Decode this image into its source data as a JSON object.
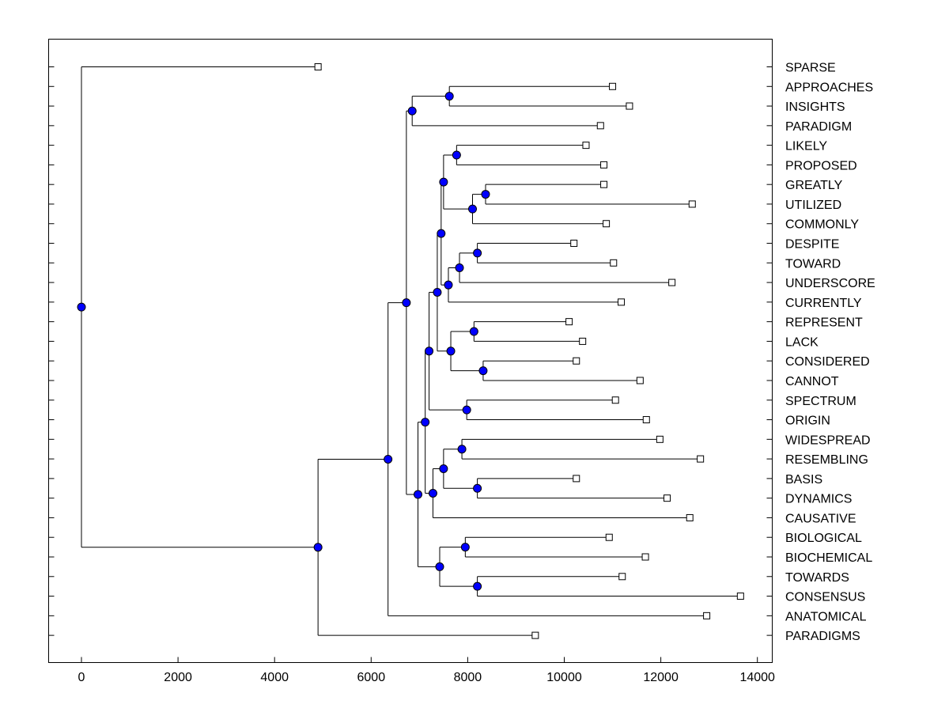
{
  "chart_data": {
    "type": "dendrogram",
    "title": "",
    "xlabel": "",
    "ylabel": "",
    "xlim": [
      -700,
      15000
    ],
    "xticks": [
      0,
      2000,
      4000,
      6000,
      8000,
      10000,
      12000,
      14000
    ],
    "xtick_labels": [
      "0",
      "2000",
      "4000",
      "6000",
      "8000",
      "10000",
      "12000",
      "14000"
    ],
    "colors": {
      "node_fill": "#0000ff",
      "line": "#000000",
      "leaf_fill": "#ffffff"
    },
    "leaves": [
      {
        "label": "SPARSE",
        "value": 4900
      },
      {
        "label": "APPROACHES",
        "value": 11000
      },
      {
        "label": "INSIGHTS",
        "value": 11350
      },
      {
        "label": "PARADIGM",
        "value": 10750
      },
      {
        "label": "LIKELY",
        "value": 10450
      },
      {
        "label": "PROPOSED",
        "value": 10820
      },
      {
        "label": "GREATLY",
        "value": 10820
      },
      {
        "label": "UTILIZED",
        "value": 12650
      },
      {
        "label": "COMMONLY",
        "value": 10870
      },
      {
        "label": "DESPITE",
        "value": 10200
      },
      {
        "label": "TOWARD",
        "value": 11020
      },
      {
        "label": "UNDERSCORE",
        "value": 12230
      },
      {
        "label": "CURRENTLY",
        "value": 11180
      },
      {
        "label": "REPRESENT",
        "value": 10100
      },
      {
        "label": "LACK",
        "value": 10380
      },
      {
        "label": "CONSIDERED",
        "value": 10250
      },
      {
        "label": "CANNOT",
        "value": 11570
      },
      {
        "label": "SPECTRUM",
        "value": 11060
      },
      {
        "label": "ORIGIN",
        "value": 11700
      },
      {
        "label": "WIDESPREAD",
        "value": 11980
      },
      {
        "label": "RESEMBLING",
        "value": 12820
      },
      {
        "label": "BASIS",
        "value": 10250
      },
      {
        "label": "DYNAMICS",
        "value": 12130
      },
      {
        "label": "CAUSATIVE",
        "value": 12600
      },
      {
        "label": "BIOLOGICAL",
        "value": 10930
      },
      {
        "label": "BIOCHEMICAL",
        "value": 11680
      },
      {
        "label": "TOWARDS",
        "value": 11200
      },
      {
        "label": "CONSENSUS",
        "value": 13650
      },
      {
        "label": "ANATOMICAL",
        "value": 12950
      },
      {
        "label": "PARADIGMS",
        "value": 9400
      }
    ],
    "merges": [
      {
        "id": "n1",
        "value": 7620,
        "children": [
          "APPROACHES",
          "INSIGHTS"
        ]
      },
      {
        "id": "n2",
        "value": 6850,
        "children": [
          "n1",
          "PARADIGM"
        ]
      },
      {
        "id": "n3",
        "value": 7770,
        "children": [
          "LIKELY",
          "PROPOSED"
        ]
      },
      {
        "id": "n4",
        "value": 8370,
        "children": [
          "GREATLY",
          "UTILIZED"
        ]
      },
      {
        "id": "n5",
        "value": 8100,
        "children": [
          "n4",
          "COMMONLY"
        ]
      },
      {
        "id": "n6",
        "value": 7500,
        "children": [
          "n3",
          "n5"
        ]
      },
      {
        "id": "n7",
        "value": 8200,
        "children": [
          "DESPITE",
          "TOWARD"
        ]
      },
      {
        "id": "n8",
        "value": 7830,
        "children": [
          "n7",
          "UNDERSCORE"
        ]
      },
      {
        "id": "n9",
        "value": 7600,
        "children": [
          "n8",
          "CURRENTLY"
        ]
      },
      {
        "id": "n10",
        "value": 7450,
        "children": [
          "n6",
          "n9"
        ]
      },
      {
        "id": "n11",
        "value": 8130,
        "children": [
          "REPRESENT",
          "LACK"
        ]
      },
      {
        "id": "n12",
        "value": 8320,
        "children": [
          "CONSIDERED",
          "CANNOT"
        ]
      },
      {
        "id": "n13",
        "value": 7650,
        "children": [
          "n11",
          "n12"
        ]
      },
      {
        "id": "n14",
        "value": 7370,
        "children": [
          "n10",
          "n13"
        ]
      },
      {
        "id": "n15",
        "value": 7980,
        "children": [
          "SPECTRUM",
          "ORIGIN"
        ]
      },
      {
        "id": "n16",
        "value": 7200,
        "children": [
          "n14",
          "n15"
        ]
      },
      {
        "id": "n17",
        "value": 7880,
        "children": [
          "WIDESPREAD",
          "RESEMBLING"
        ]
      },
      {
        "id": "n18",
        "value": 8200,
        "children": [
          "BASIS",
          "DYNAMICS"
        ]
      },
      {
        "id": "n19",
        "value": 7500,
        "children": [
          "n17",
          "n18"
        ]
      },
      {
        "id": "n20",
        "value": 7280,
        "children": [
          "n19",
          "CAUSATIVE"
        ]
      },
      {
        "id": "n21",
        "value": 7120,
        "children": [
          "n16",
          "n20"
        ]
      },
      {
        "id": "n22",
        "value": 7950,
        "children": [
          "BIOLOGICAL",
          "BIOCHEMICAL"
        ]
      },
      {
        "id": "n23",
        "value": 8200,
        "children": [
          "TOWARDS",
          "CONSENSUS"
        ]
      },
      {
        "id": "n24",
        "value": 7420,
        "children": [
          "n22",
          "n23"
        ]
      },
      {
        "id": "n25",
        "value": 6970,
        "children": [
          "n21",
          "n24"
        ]
      },
      {
        "id": "n26",
        "value": 6730,
        "children": [
          "n2",
          "n25"
        ]
      },
      {
        "id": "n27",
        "value": 6350,
        "children": [
          "n26",
          "ANATOMICAL"
        ]
      },
      {
        "id": "n28",
        "value": 4900,
        "children": [
          "n27",
          "PARADIGMS"
        ]
      },
      {
        "id": "n29",
        "value": 0,
        "children": [
          "SPARSE",
          "n28"
        ]
      }
    ]
  }
}
